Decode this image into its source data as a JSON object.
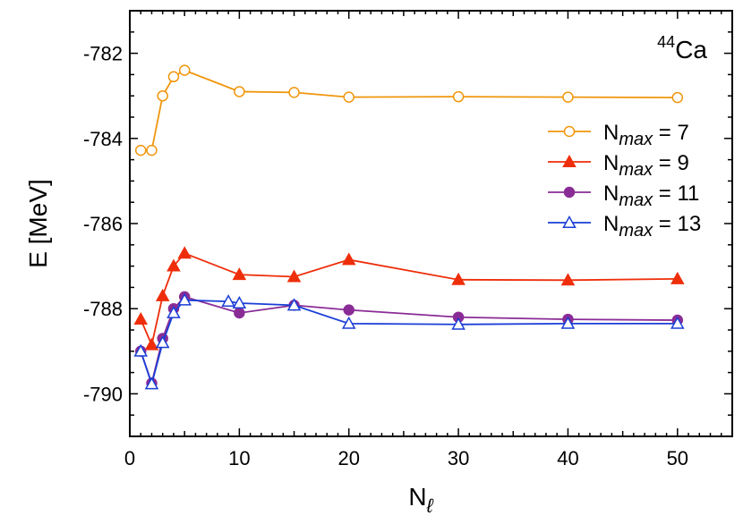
{
  "chart_data": {
    "type": "line",
    "title": "",
    "annotation": {
      "sup": "44",
      "text": "Ca"
    },
    "xlabel": {
      "main": "N",
      "sub": "ℓ"
    },
    "ylabel": "E [MeV]",
    "xlim": [
      0,
      55
    ],
    "ylim": [
      -791,
      -781
    ],
    "xticks": [
      0,
      10,
      20,
      30,
      40,
      50
    ],
    "xtick_labels": [
      "0",
      "10",
      "20",
      "30",
      "40",
      "50"
    ],
    "yticks": [
      -782,
      -784,
      -786,
      -788,
      -790
    ],
    "ytick_labels": [
      "-782",
      "-784",
      "-786",
      "-788",
      "-790"
    ],
    "grid": false,
    "legend_position": "right",
    "series": [
      {
        "name": "N",
        "name_sub": "max",
        "name_suffix": " = 7",
        "color": "#f0960c",
        "marker": "circle-open",
        "x": [
          1,
          2,
          3,
          4,
          5,
          10,
          15,
          20,
          30,
          40,
          50
        ],
        "y": [
          -784.28,
          -784.28,
          -783.0,
          -782.55,
          -782.4,
          -782.9,
          -782.92,
          -783.03,
          -783.02,
          -783.03,
          -783.04
        ]
      },
      {
        "name": "N",
        "name_sub": "max",
        "name_suffix": " = 9",
        "color": "#ee2e0a",
        "marker": "triangle-filled",
        "x": [
          1,
          2,
          3,
          4,
          5,
          10,
          15,
          20,
          30,
          40,
          50
        ],
        "y": [
          -788.25,
          -788.85,
          -787.7,
          -787.0,
          -786.7,
          -787.2,
          -787.25,
          -786.85,
          -787.32,
          -787.33,
          -787.3
        ]
      },
      {
        "name": "N",
        "name_sub": "max",
        "name_suffix": " = 11",
        "color": "#8a2c96",
        "marker": "circle-filled",
        "x": [
          1,
          2,
          3,
          4,
          5,
          10,
          15,
          20,
          30,
          40,
          50
        ],
        "y": [
          -789.0,
          -789.75,
          -788.7,
          -788.0,
          -787.72,
          -788.1,
          -787.92,
          -788.03,
          -788.2,
          -788.25,
          -788.27
        ]
      },
      {
        "name": "N",
        "name_sub": "max",
        "name_suffix": " = 13",
        "color": "#1a3ed6",
        "marker": "triangle-open",
        "x": [
          1,
          2,
          3,
          4,
          5,
          9,
          10,
          15,
          20,
          30,
          40,
          50
        ],
        "y": [
          -789.0,
          -789.77,
          -788.8,
          -788.1,
          -787.8,
          -787.83,
          -787.87,
          -787.92,
          -788.35,
          -788.37,
          -788.35,
          -788.35
        ]
      }
    ]
  }
}
